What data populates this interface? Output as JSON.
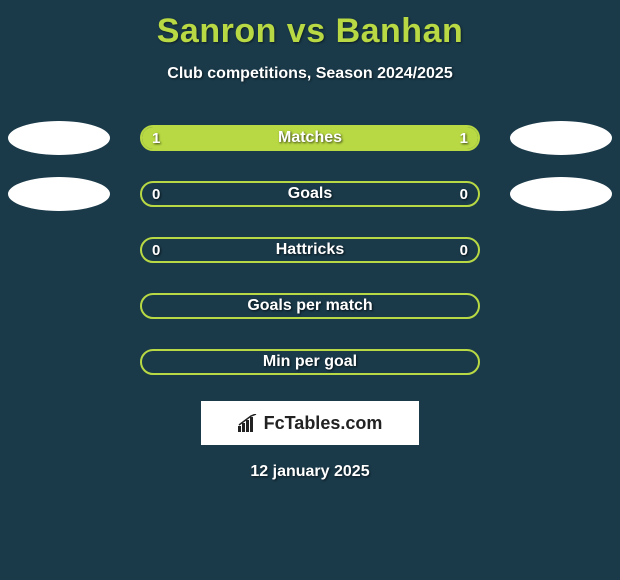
{
  "title": "Sanron vs Banhan",
  "subtitle": "Club competitions, Season 2024/2025",
  "colors": {
    "accent": "#b8d943",
    "background": "#1a3a4a",
    "oval": "#ffffff",
    "logo_bg": "#ffffff",
    "logo_text": "#222222"
  },
  "rows": [
    {
      "label": "Matches",
      "left": "1",
      "right": "1",
      "border": "#b8d943",
      "fill_left_pct": 50,
      "fill_right_pct": 50,
      "fill_color": "#b8d943",
      "show_left_oval": true,
      "show_right_oval": true
    },
    {
      "label": "Goals",
      "left": "0",
      "right": "0",
      "border": "#b8d943",
      "fill_left_pct": 0,
      "fill_right_pct": 0,
      "fill_color": "#b8d943",
      "show_left_oval": true,
      "show_right_oval": true
    },
    {
      "label": "Hattricks",
      "left": "0",
      "right": "0",
      "border": "#b8d943",
      "fill_left_pct": 0,
      "fill_right_pct": 0,
      "fill_color": "#b8d943",
      "show_left_oval": false,
      "show_right_oval": false
    },
    {
      "label": "Goals per match",
      "left": "",
      "right": "",
      "border": "#b8d943",
      "fill_left_pct": 0,
      "fill_right_pct": 0,
      "fill_color": "#b8d943",
      "show_left_oval": false,
      "show_right_oval": false
    },
    {
      "label": "Min per goal",
      "left": "",
      "right": "",
      "border": "#b8d943",
      "fill_left_pct": 0,
      "fill_right_pct": 0,
      "fill_color": "#b8d943",
      "show_left_oval": false,
      "show_right_oval": false
    }
  ],
  "logo_text": "FcTables.com",
  "date": "12 january 2025"
}
